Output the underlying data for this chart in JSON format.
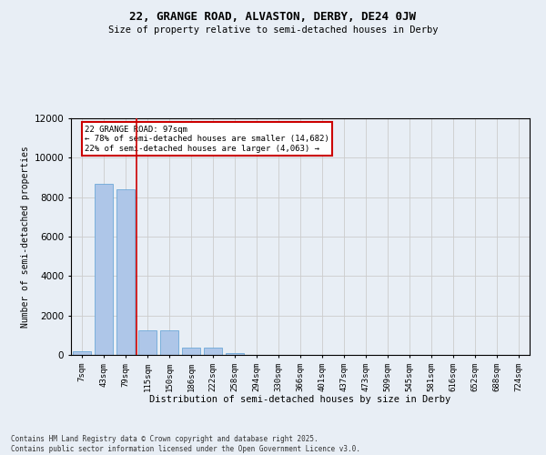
{
  "title1": "22, GRANGE ROAD, ALVASTON, DERBY, DE24 0JW",
  "title2": "Size of property relative to semi-detached houses in Derby",
  "xlabel": "Distribution of semi-detached houses by size in Derby",
  "ylabel": "Number of semi-detached properties",
  "categories": [
    "7sqm",
    "43sqm",
    "79sqm",
    "115sqm",
    "150sqm",
    "186sqm",
    "222sqm",
    "258sqm",
    "294sqm",
    "330sqm",
    "366sqm",
    "401sqm",
    "437sqm",
    "473sqm",
    "509sqm",
    "545sqm",
    "581sqm",
    "616sqm",
    "652sqm",
    "688sqm",
    "724sqm"
  ],
  "values": [
    200,
    8700,
    8400,
    1250,
    1250,
    350,
    350,
    100,
    0,
    0,
    0,
    0,
    0,
    0,
    0,
    0,
    0,
    0,
    0,
    0,
    0
  ],
  "bar_color": "#aec6e8",
  "bar_edge_color": "#5a9fd4",
  "grid_color": "#cccccc",
  "background_color": "#e8eef5",
  "red_line_x": 2.5,
  "annotation_title": "22 GRANGE ROAD: 97sqm",
  "annotation_line1": "← 78% of semi-detached houses are smaller (14,682)",
  "annotation_line2": "22% of semi-detached houses are larger (4,063) →",
  "annotation_box_color": "#ffffff",
  "annotation_box_edge": "#cc0000",
  "annotation_text_color": "#000000",
  "red_line_color": "#cc0000",
  "ylim": [
    0,
    12000
  ],
  "yticks": [
    0,
    2000,
    4000,
    6000,
    8000,
    10000,
    12000
  ],
  "footer1": "Contains HM Land Registry data © Crown copyright and database right 2025.",
  "footer2": "Contains public sector information licensed under the Open Government Licence v3.0."
}
